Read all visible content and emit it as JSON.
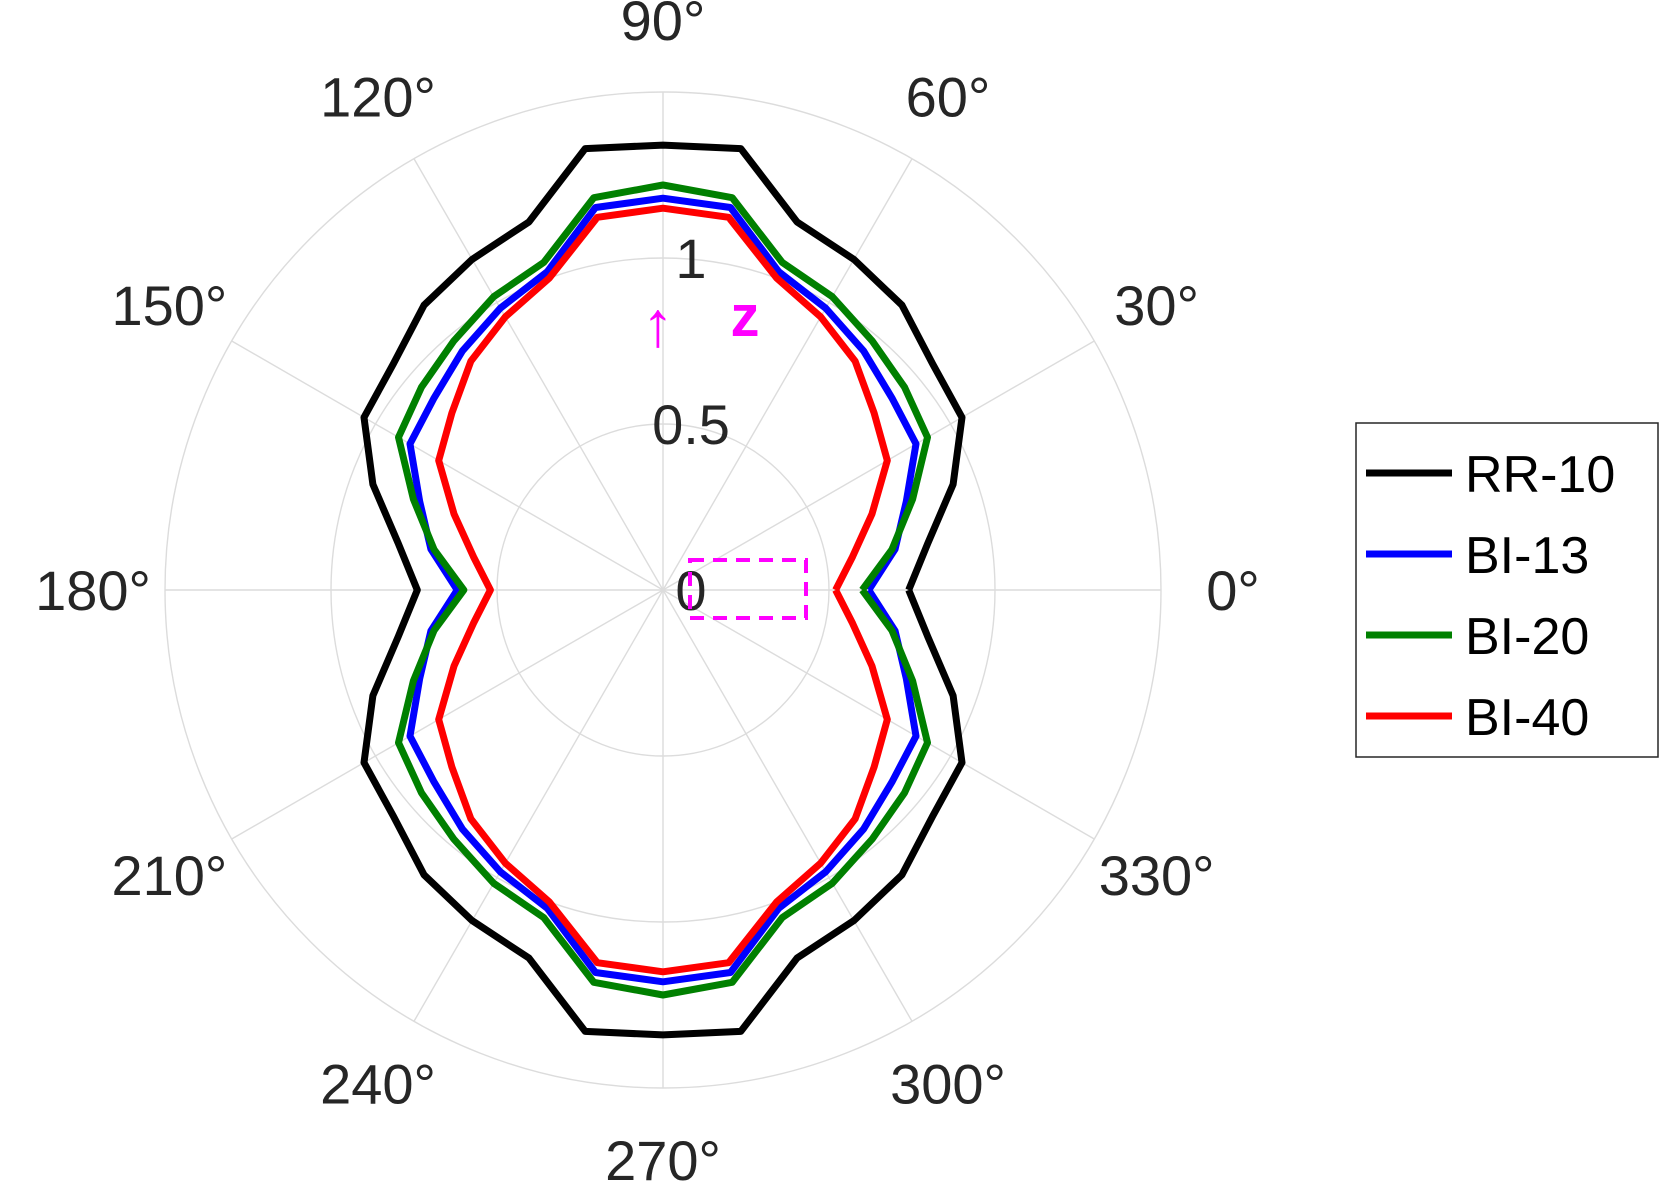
{
  "chart_data": {
    "type": "polar-line",
    "angle_unit": "degrees",
    "angle_ticks": [
      0,
      30,
      60,
      90,
      120,
      150,
      180,
      210,
      240,
      270,
      300,
      330
    ],
    "angle_tick_labels": [
      "0°",
      "30°",
      "60°",
      "90°",
      "120°",
      "150°",
      "180°",
      "210°",
      "240°",
      "270°",
      "300°",
      "330°"
    ],
    "r_ticks": [
      0,
      0.5,
      1
    ],
    "r_tick_labels": [
      "0",
      "0.5",
      "1"
    ],
    "r_max": 1.5,
    "grid": true,
    "legend_position": "right",
    "annotation": {
      "arrow": "↑",
      "label": "z",
      "color": "#ff00ff"
    },
    "series": [
      {
        "name": "RR-10",
        "color": "#000000",
        "theta": [
          0,
          10,
          20,
          30,
          40,
          50,
          60,
          70,
          80,
          90,
          100,
          110,
          120,
          130,
          140,
          150,
          160,
          170,
          180,
          190,
          200,
          210,
          220,
          230,
          240,
          250,
          260,
          270,
          280,
          290,
          300,
          310,
          320,
          330,
          340,
          350
        ],
        "r": [
          0.74,
          0.81,
          0.93,
          1.04,
          1.06,
          1.12,
          1.15,
          1.18,
          1.35,
          1.34,
          1.35,
          1.18,
          1.15,
          1.12,
          1.06,
          1.04,
          0.93,
          0.81,
          0.74,
          0.81,
          0.93,
          1.04,
          1.06,
          1.12,
          1.15,
          1.18,
          1.35,
          1.34,
          1.35,
          1.18,
          1.15,
          1.12,
          1.06,
          1.04,
          0.93,
          0.81
        ]
      },
      {
        "name": "BI-13",
        "color": "#0000ff",
        "theta": [
          0,
          10,
          20,
          30,
          40,
          50,
          60,
          70,
          80,
          90,
          100,
          110,
          120,
          130,
          140,
          150,
          160,
          170,
          180,
          190,
          200,
          210,
          220,
          230,
          240,
          250,
          260,
          270,
          280,
          290,
          300,
          310,
          320,
          330,
          340,
          350
        ],
        "r": [
          0.62,
          0.71,
          0.78,
          0.88,
          0.9,
          0.94,
          0.98,
          1.02,
          1.17,
          1.18,
          1.17,
          1.02,
          0.98,
          0.94,
          0.9,
          0.88,
          0.78,
          0.71,
          0.62,
          0.71,
          0.78,
          0.88,
          0.9,
          0.94,
          0.98,
          1.02,
          1.17,
          1.18,
          1.17,
          1.02,
          0.98,
          0.94,
          0.9,
          0.88,
          0.78,
          0.71
        ]
      },
      {
        "name": "BI-20",
        "color": "#008000",
        "theta": [
          0,
          10,
          20,
          30,
          40,
          50,
          60,
          70,
          80,
          90,
          100,
          110,
          120,
          130,
          140,
          150,
          160,
          170,
          180,
          190,
          200,
          210,
          220,
          230,
          240,
          250,
          260,
          270,
          280,
          290,
          300,
          310,
          320,
          330,
          340,
          350
        ],
        "r": [
          0.6,
          0.7,
          0.8,
          0.92,
          0.95,
          0.98,
          1.02,
          1.05,
          1.2,
          1.22,
          1.2,
          1.05,
          1.02,
          0.98,
          0.95,
          0.92,
          0.8,
          0.7,
          0.6,
          0.7,
          0.8,
          0.92,
          0.95,
          0.98,
          1.02,
          1.05,
          1.2,
          1.22,
          1.2,
          1.05,
          1.02,
          0.98,
          0.95,
          0.92,
          0.8,
          0.7
        ]
      },
      {
        "name": "BI-40",
        "color": "#ff0000",
        "theta": [
          0,
          10,
          20,
          30,
          40,
          50,
          60,
          70,
          80,
          90,
          100,
          110,
          120,
          130,
          140,
          150,
          160,
          170,
          180,
          190,
          200,
          210,
          220,
          230,
          240,
          250,
          260,
          270,
          280,
          290,
          300,
          310,
          320,
          330,
          340,
          350
        ],
        "r": [
          0.52,
          0.58,
          0.67,
          0.78,
          0.83,
          0.9,
          0.95,
          1.0,
          1.14,
          1.15,
          1.14,
          1.0,
          0.95,
          0.9,
          0.83,
          0.78,
          0.67,
          0.58,
          0.52,
          0.58,
          0.67,
          0.78,
          0.83,
          0.9,
          0.95,
          1.0,
          1.14,
          1.15,
          1.14,
          1.0,
          0.95,
          0.9,
          0.83,
          0.78,
          0.67,
          0.58
        ]
      }
    ]
  }
}
